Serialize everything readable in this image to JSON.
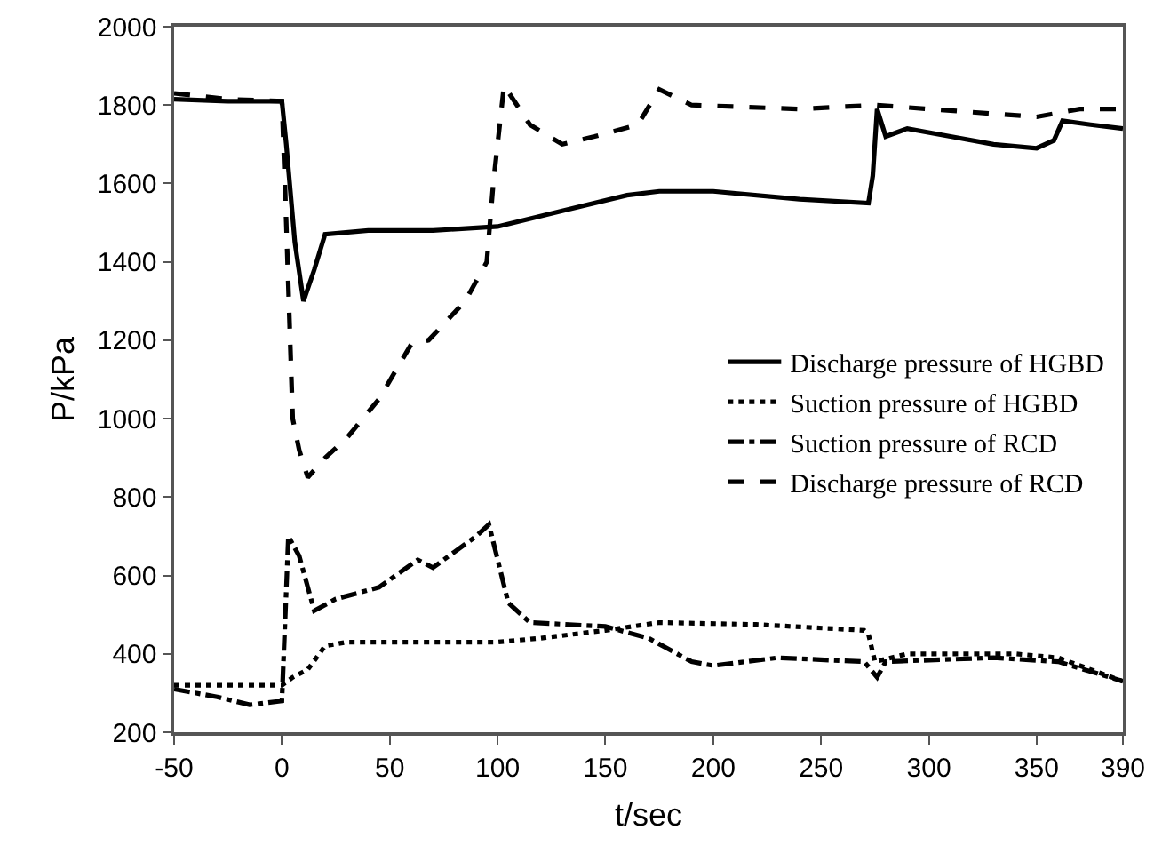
{
  "chart_data": {
    "type": "line",
    "xlabel": "t/sec",
    "ylabel": "P/kPa",
    "xlim": [
      -50,
      390
    ],
    "xticks": [
      -50,
      0,
      50,
      100,
      150,
      200,
      250,
      300,
      350,
      390
    ],
    "ylim": [
      200,
      2000
    ],
    "yticks": [
      200,
      400,
      600,
      800,
      1000,
      1200,
      1400,
      1600,
      1800,
      2000
    ],
    "grid": false,
    "legend": "right",
    "marker": "none",
    "series": [
      {
        "name": "Discharge pressure of HGBD",
        "color": "#000000",
        "line_style": "solid",
        "x": [
          -50,
          -25,
          0,
          2,
          6,
          10,
          15,
          20,
          40,
          70,
          100,
          130,
          160,
          175,
          200,
          240,
          272,
          274,
          276,
          280,
          290,
          310,
          330,
          350,
          358,
          362,
          375,
          390
        ],
        "values": [
          1815,
          1810,
          1810,
          1700,
          1450,
          1300,
          1380,
          1470,
          1480,
          1480,
          1490,
          1530,
          1570,
          1580,
          1580,
          1560,
          1550,
          1620,
          1790,
          1720,
          1740,
          1720,
          1700,
          1690,
          1710,
          1760,
          1750,
          1740
        ]
      },
      {
        "name": "Suction pressure of HGBD",
        "color": "#000000",
        "line_style": "dotted",
        "x": [
          -50,
          -25,
          0,
          5,
          12,
          20,
          30,
          60,
          100,
          120,
          150,
          175,
          220,
          270,
          272,
          275,
          290,
          340,
          360,
          370,
          390
        ],
        "values": [
          320,
          320,
          320,
          340,
          360,
          420,
          430,
          430,
          430,
          440,
          460,
          480,
          475,
          460,
          450,
          380,
          400,
          400,
          390,
          370,
          330
        ]
      },
      {
        "name": "Suction pressure of RCD",
        "color": "#000000",
        "line_style": "dashdot",
        "x": [
          -50,
          -30,
          -15,
          0,
          3,
          8,
          15,
          25,
          45,
          63,
          70,
          90,
          96,
          105,
          115,
          150,
          170,
          190,
          200,
          230,
          270,
          276,
          280,
          330,
          360,
          390
        ],
        "values": [
          310,
          290,
          270,
          280,
          700,
          650,
          510,
          540,
          570,
          640,
          620,
          700,
          730,
          530,
          480,
          470,
          440,
          380,
          370,
          390,
          380,
          340,
          380,
          390,
          380,
          330
        ]
      },
      {
        "name": "Discharge pressure of RCD",
        "color": "#000000",
        "line_style": "dashed",
        "x": [
          -50,
          -25,
          0,
          2,
          5,
          8,
          12,
          20,
          30,
          45,
          60,
          68,
          85,
          95,
          98,
          103,
          115,
          130,
          145,
          165,
          175,
          190,
          240,
          275,
          300,
          350,
          370,
          390
        ],
        "values": [
          1830,
          1815,
          1810,
          1500,
          1000,
          920,
          850,
          900,
          950,
          1050,
          1190,
          1200,
          1300,
          1400,
          1600,
          1850,
          1750,
          1700,
          1720,
          1750,
          1840,
          1800,
          1790,
          1800,
          1790,
          1770,
          1790,
          1790
        ]
      }
    ]
  }
}
